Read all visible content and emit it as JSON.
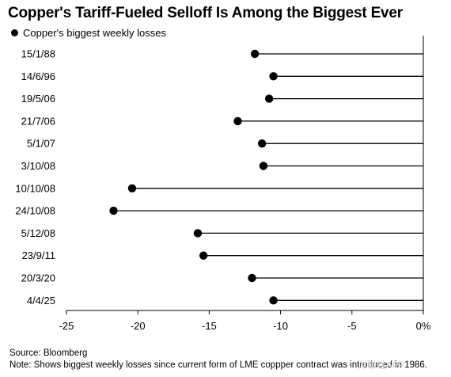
{
  "chart_data": {
    "type": "dot-plot",
    "title": "Copper's Tariff-Fueled Selloff Is Among the Biggest Ever",
    "legend": "Copper's biggest weekly losses",
    "categories": [
      "15/1/88",
      "14/6/96",
      "19/5/06",
      "21/7/06",
      "5/1/07",
      "3/10/08",
      "10/10/08",
      "24/10/08",
      "5/12/08",
      "23/9/11",
      "20/3/20",
      "4/4/25"
    ],
    "values": [
      -11.8,
      -10.5,
      -10.8,
      -13.0,
      -11.3,
      -11.2,
      -20.4,
      -21.7,
      -15.8,
      -15.4,
      -12.0,
      -10.5
    ],
    "xticks": [
      -25,
      -20,
      -15,
      -10,
      -5,
      0
    ],
    "xtick_labels": [
      "-25",
      "-20",
      "-15",
      "-10",
      "-5",
      "0%"
    ],
    "xlim": [
      -25,
      0
    ],
    "grid": false
  },
  "source": "Source: Bloomberg",
  "note": "Note: Shows biggest weekly losses since current form of LME coppper contract was introduced in 1986.",
  "watermark": "財聯社APP"
}
